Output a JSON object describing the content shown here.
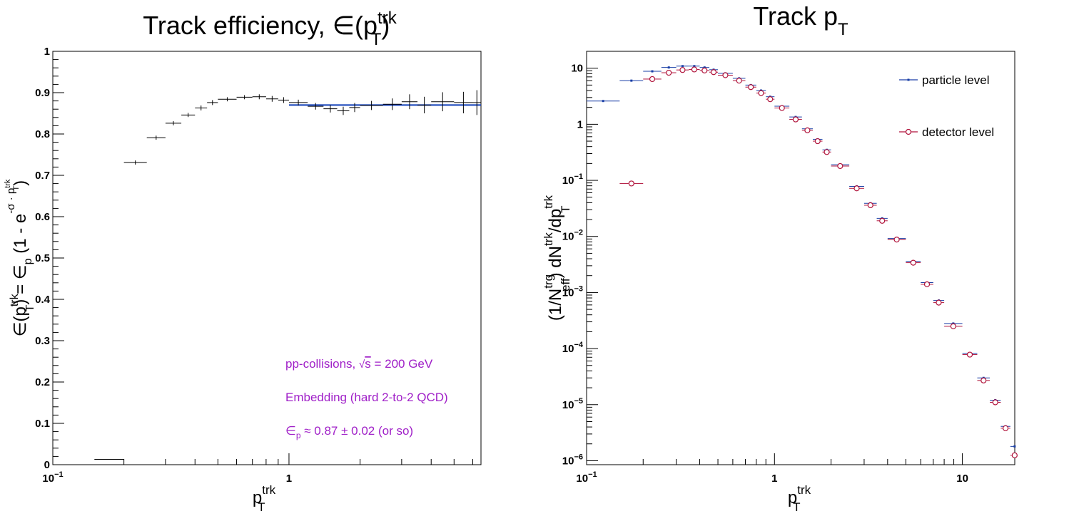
{
  "left_panel": {
    "title": "Track efficiency, ∈(p",
    "title_sup": "trk",
    "title_sub": "T",
    "title_close": ")",
    "ylabel": "∈(p",
    "ylabel_sup": "trk",
    "ylabel_sub": "T",
    "ylabel_mid": ") = ∈",
    "ylabel_sub2": "p",
    "ylabel_mid2": " (1 - e",
    "ylabel_sup2": "-σ · p",
    "ylabel_sup2_sup": "trk",
    "ylabel_sup2_sub": "T",
    "ylabel_close": ")",
    "xlabel": "p",
    "xlabel_sup": "trk",
    "xlabel_sub": "T",
    "annot1_pre": "pp-collisions, ",
    "annot1_sqrt": "√",
    "annot1_s": "s",
    "annot1_post": " = 200 GeV",
    "annot2": "Embedding (hard 2-to-2 QCD)",
    "annot3_eps": "∈",
    "annot3_sub": "p",
    "annot3_rest": " ≈ 0.87 ± 0.02 (or so)",
    "ytick_labels": [
      "0",
      "0.1",
      "0.2",
      "0.3",
      "0.4",
      "0.5",
      "0.6",
      "0.7",
      "0.8",
      "0.9",
      "1"
    ],
    "xtick_labels": [
      {
        "base": "10",
        "exp": "−1"
      },
      {
        "base": "1",
        "exp": ""
      }
    ]
  },
  "right_panel": {
    "title": "Track p",
    "title_sub": "T",
    "ylabel_a": "(1/N",
    "ylabel_a_sup": "trg",
    "ylabel_a_sub": "eff",
    "ylabel_b": ") dN",
    "ylabel_b_sup": "trk",
    "ylabel_c": "/dp",
    "ylabel_c_sup": "trk",
    "ylabel_c_sub": "T",
    "xlabel": "p",
    "xlabel_sup": "trk",
    "xlabel_sub": "T",
    "legend_particle": "particle level",
    "legend_detector": "detector level",
    "ytick_labels": [
      {
        "base": "10",
        "exp": "−6"
      },
      {
        "base": "10",
        "exp": "−5"
      },
      {
        "base": "10",
        "exp": "−4"
      },
      {
        "base": "10",
        "exp": "−3"
      },
      {
        "base": "10",
        "exp": "−2"
      },
      {
        "base": "10",
        "exp": "−1"
      },
      {
        "base": "1",
        "exp": ""
      },
      {
        "base": "10",
        "exp": ""
      }
    ],
    "xtick_labels": [
      {
        "base": "10",
        "exp": "−1"
      },
      {
        "base": "1",
        "exp": ""
      },
      {
        "base": "10",
        "exp": ""
      }
    ]
  },
  "colors": {
    "particle": "#1a3fa6",
    "detector": "#b0123a",
    "fit": "#0f3db8",
    "annotation": "#a020c8",
    "axis": "#000000"
  },
  "chart_data": [
    {
      "type": "scatter",
      "title": "Track efficiency, ∈(p_T^trk)",
      "xlabel": "p_T^trk",
      "ylabel": "∈(p_T^trk) = ∈_p (1 - e^(-σ · p_T^trk))",
      "xscale": "log",
      "xlim": [
        0.1,
        6.5
      ],
      "ylim": [
        0,
        1
      ],
      "grid": false,
      "series": [
        {
          "marker": "errorbar",
          "points": [
            {
              "xlo": 0.15,
              "xhi": 0.2,
              "y": 0.013,
              "err": 0.001
            },
            {
              "xlo": 0.2,
              "xhi": 0.25,
              "y": 0.731,
              "err": 0.005
            },
            {
              "xlo": 0.25,
              "xhi": 0.3,
              "y": 0.791,
              "err": 0.005
            },
            {
              "xlo": 0.3,
              "xhi": 0.35,
              "y": 0.826,
              "err": 0.005
            },
            {
              "xlo": 0.35,
              "xhi": 0.4,
              "y": 0.846,
              "err": 0.005
            },
            {
              "xlo": 0.4,
              "xhi": 0.45,
              "y": 0.863,
              "err": 0.006
            },
            {
              "xlo": 0.45,
              "xhi": 0.5,
              "y": 0.876,
              "err": 0.006
            },
            {
              "xlo": 0.5,
              "xhi": 0.6,
              "y": 0.884,
              "err": 0.005
            },
            {
              "xlo": 0.6,
              "xhi": 0.7,
              "y": 0.889,
              "err": 0.005
            },
            {
              "xlo": 0.7,
              "xhi": 0.8,
              "y": 0.89,
              "err": 0.006
            },
            {
              "xlo": 0.8,
              "xhi": 0.9,
              "y": 0.885,
              "err": 0.007
            },
            {
              "xlo": 0.9,
              "xhi": 1.0,
              "y": 0.882,
              "err": 0.007
            },
            {
              "xlo": 1.0,
              "xhi": 1.2,
              "y": 0.876,
              "err": 0.007
            },
            {
              "xlo": 1.2,
              "xhi": 1.4,
              "y": 0.867,
              "err": 0.008
            },
            {
              "xlo": 1.4,
              "xhi": 1.6,
              "y": 0.861,
              "err": 0.009
            },
            {
              "xlo": 1.6,
              "xhi": 1.8,
              "y": 0.856,
              "err": 0.01
            },
            {
              "xlo": 1.8,
              "xhi": 2.0,
              "y": 0.864,
              "err": 0.011
            },
            {
              "xlo": 2.0,
              "xhi": 2.5,
              "y": 0.869,
              "err": 0.011
            },
            {
              "xlo": 2.5,
              "xhi": 3.0,
              "y": 0.872,
              "err": 0.014
            },
            {
              "xlo": 3.0,
              "xhi": 3.5,
              "y": 0.878,
              "err": 0.018
            },
            {
              "xlo": 3.5,
              "xhi": 4.0,
              "y": 0.87,
              "err": 0.02
            },
            {
              "xlo": 4.0,
              "xhi": 5.0,
              "y": 0.878,
              "err": 0.023
            },
            {
              "xlo": 5.0,
              "xhi": 6.0,
              "y": 0.876,
              "err": 0.026
            },
            {
              "xlo": 6.0,
              "xhi": 6.5,
              "y": 0.876,
              "err": 0.03
            }
          ]
        }
      ],
      "fit": {
        "function": "∈_p (1 - e^(-σ · p_T^trk))",
        "xfrom": 1.0,
        "xto": 6.5,
        "value": 0.87
      }
    },
    {
      "type": "scatter",
      "title": "Track p_T",
      "xlabel": "p_T^trk",
      "ylabel": "(1/N_eff^trg) dN^trk/dp_T^trk",
      "xscale": "log",
      "yscale": "log",
      "xlim": [
        0.1,
        19
      ],
      "ylim": [
        8.5e-07,
        20
      ],
      "legend": "top-right",
      "grid": false,
      "series": [
        {
          "name": "particle level",
          "marker": "small-square",
          "points": [
            {
              "xlo": 0.1,
              "xhi": 0.15,
              "y": 2.6
            },
            {
              "xlo": 0.15,
              "xhi": 0.2,
              "y": 6.0
            },
            {
              "xlo": 0.2,
              "xhi": 0.25,
              "y": 8.8
            },
            {
              "xlo": 0.25,
              "xhi": 0.3,
              "y": 10.3
            },
            {
              "xlo": 0.3,
              "xhi": 0.35,
              "y": 10.9
            },
            {
              "xlo": 0.35,
              "xhi": 0.4,
              "y": 10.9
            },
            {
              "xlo": 0.4,
              "xhi": 0.45,
              "y": 10.3
            },
            {
              "xlo": 0.45,
              "xhi": 0.5,
              "y": 9.4
            },
            {
              "xlo": 0.5,
              "xhi": 0.6,
              "y": 8.1
            },
            {
              "xlo": 0.6,
              "xhi": 0.7,
              "y": 6.6
            },
            {
              "xlo": 0.7,
              "xhi": 0.8,
              "y": 5.0
            },
            {
              "xlo": 0.8,
              "xhi": 0.9,
              "y": 4.0
            },
            {
              "xlo": 0.9,
              "xhi": 1.0,
              "y": 3.1
            },
            {
              "xlo": 1.0,
              "xhi": 1.2,
              "y": 2.1
            },
            {
              "xlo": 1.2,
              "xhi": 1.4,
              "y": 1.35
            },
            {
              "xlo": 1.4,
              "xhi": 1.6,
              "y": 0.83
            },
            {
              "xlo": 1.6,
              "xhi": 1.8,
              "y": 0.54
            },
            {
              "xlo": 1.8,
              "xhi": 2.0,
              "y": 0.35
            },
            {
              "xlo": 2.0,
              "xhi": 2.5,
              "y": 0.19
            },
            {
              "xlo": 2.5,
              "xhi": 3.0,
              "y": 0.078
            },
            {
              "xlo": 3.0,
              "xhi": 3.5,
              "y": 0.039
            },
            {
              "xlo": 3.5,
              "xhi": 4.0,
              "y": 0.021
            },
            {
              "xlo": 4.0,
              "xhi": 5.0,
              "y": 0.0092
            },
            {
              "xlo": 5.0,
              "xhi": 6.0,
              "y": 0.0036
            },
            {
              "xlo": 6.0,
              "xhi": 7.0,
              "y": 0.0015
            },
            {
              "xlo": 7.0,
              "xhi": 8.0,
              "y": 0.00072
            },
            {
              "xlo": 8.0,
              "xhi": 10.0,
              "y": 0.00028
            },
            {
              "xlo": 10.0,
              "xhi": 12.0,
              "y": 8.2e-05
            },
            {
              "xlo": 12.0,
              "xhi": 14.0,
              "y": 3e-05
            },
            {
              "xlo": 14.0,
              "xhi": 16.0,
              "y": 1.2e-05
            },
            {
              "xlo": 16.0,
              "xhi": 18.0,
              "y": 4.1e-06
            },
            {
              "xlo": 18.0,
              "xhi": 20.0,
              "y": 1.8e-06
            }
          ]
        },
        {
          "name": "detector level",
          "marker": "open-circle",
          "points": [
            {
              "xlo": 0.15,
              "xhi": 0.2,
              "y": 0.088
            },
            {
              "xlo": 0.2,
              "xhi": 0.25,
              "y": 6.4
            },
            {
              "xlo": 0.25,
              "xhi": 0.3,
              "y": 8.3
            },
            {
              "xlo": 0.3,
              "xhi": 0.35,
              "y": 9.3
            },
            {
              "xlo": 0.35,
              "xhi": 0.4,
              "y": 9.5
            },
            {
              "xlo": 0.4,
              "xhi": 0.45,
              "y": 9.1
            },
            {
              "xlo": 0.45,
              "xhi": 0.5,
              "y": 8.5
            },
            {
              "xlo": 0.5,
              "xhi": 0.6,
              "y": 7.5
            },
            {
              "xlo": 0.6,
              "xhi": 0.7,
              "y": 6.0
            },
            {
              "xlo": 0.7,
              "xhi": 0.8,
              "y": 4.6
            },
            {
              "xlo": 0.8,
              "xhi": 0.9,
              "y": 3.6
            },
            {
              "xlo": 0.9,
              "xhi": 1.0,
              "y": 2.8
            },
            {
              "xlo": 1.0,
              "xhi": 1.2,
              "y": 1.95
            },
            {
              "xlo": 1.2,
              "xhi": 1.4,
              "y": 1.22
            },
            {
              "xlo": 1.4,
              "xhi": 1.6,
              "y": 0.78
            },
            {
              "xlo": 1.6,
              "xhi": 1.8,
              "y": 0.5
            },
            {
              "xlo": 1.8,
              "xhi": 2.0,
              "y": 0.32
            },
            {
              "xlo": 2.0,
              "xhi": 2.5,
              "y": 0.18
            },
            {
              "xlo": 2.5,
              "xhi": 3.0,
              "y": 0.072
            },
            {
              "xlo": 3.0,
              "xhi": 3.5,
              "y": 0.036
            },
            {
              "xlo": 3.5,
              "xhi": 4.0,
              "y": 0.019
            },
            {
              "xlo": 4.0,
              "xhi": 5.0,
              "y": 0.0088
            },
            {
              "xlo": 5.0,
              "xhi": 6.0,
              "y": 0.0034
            },
            {
              "xlo": 6.0,
              "xhi": 7.0,
              "y": 0.0014
            },
            {
              "xlo": 7.0,
              "xhi": 8.0,
              "y": 0.00066
            },
            {
              "xlo": 8.0,
              "xhi": 10.0,
              "y": 0.00025
            },
            {
              "xlo": 10.0,
              "xhi": 12.0,
              "y": 7.8e-05
            },
            {
              "xlo": 12.0,
              "xhi": 14.0,
              "y": 2.7e-05
            },
            {
              "xlo": 14.0,
              "xhi": 16.0,
              "y": 1.1e-05
            },
            {
              "xlo": 16.0,
              "xhi": 18.0,
              "y": 3.8e-06
            },
            {
              "xlo": 18.0,
              "xhi": 20.0,
              "y": 1.25e-06
            }
          ]
        }
      ]
    }
  ]
}
